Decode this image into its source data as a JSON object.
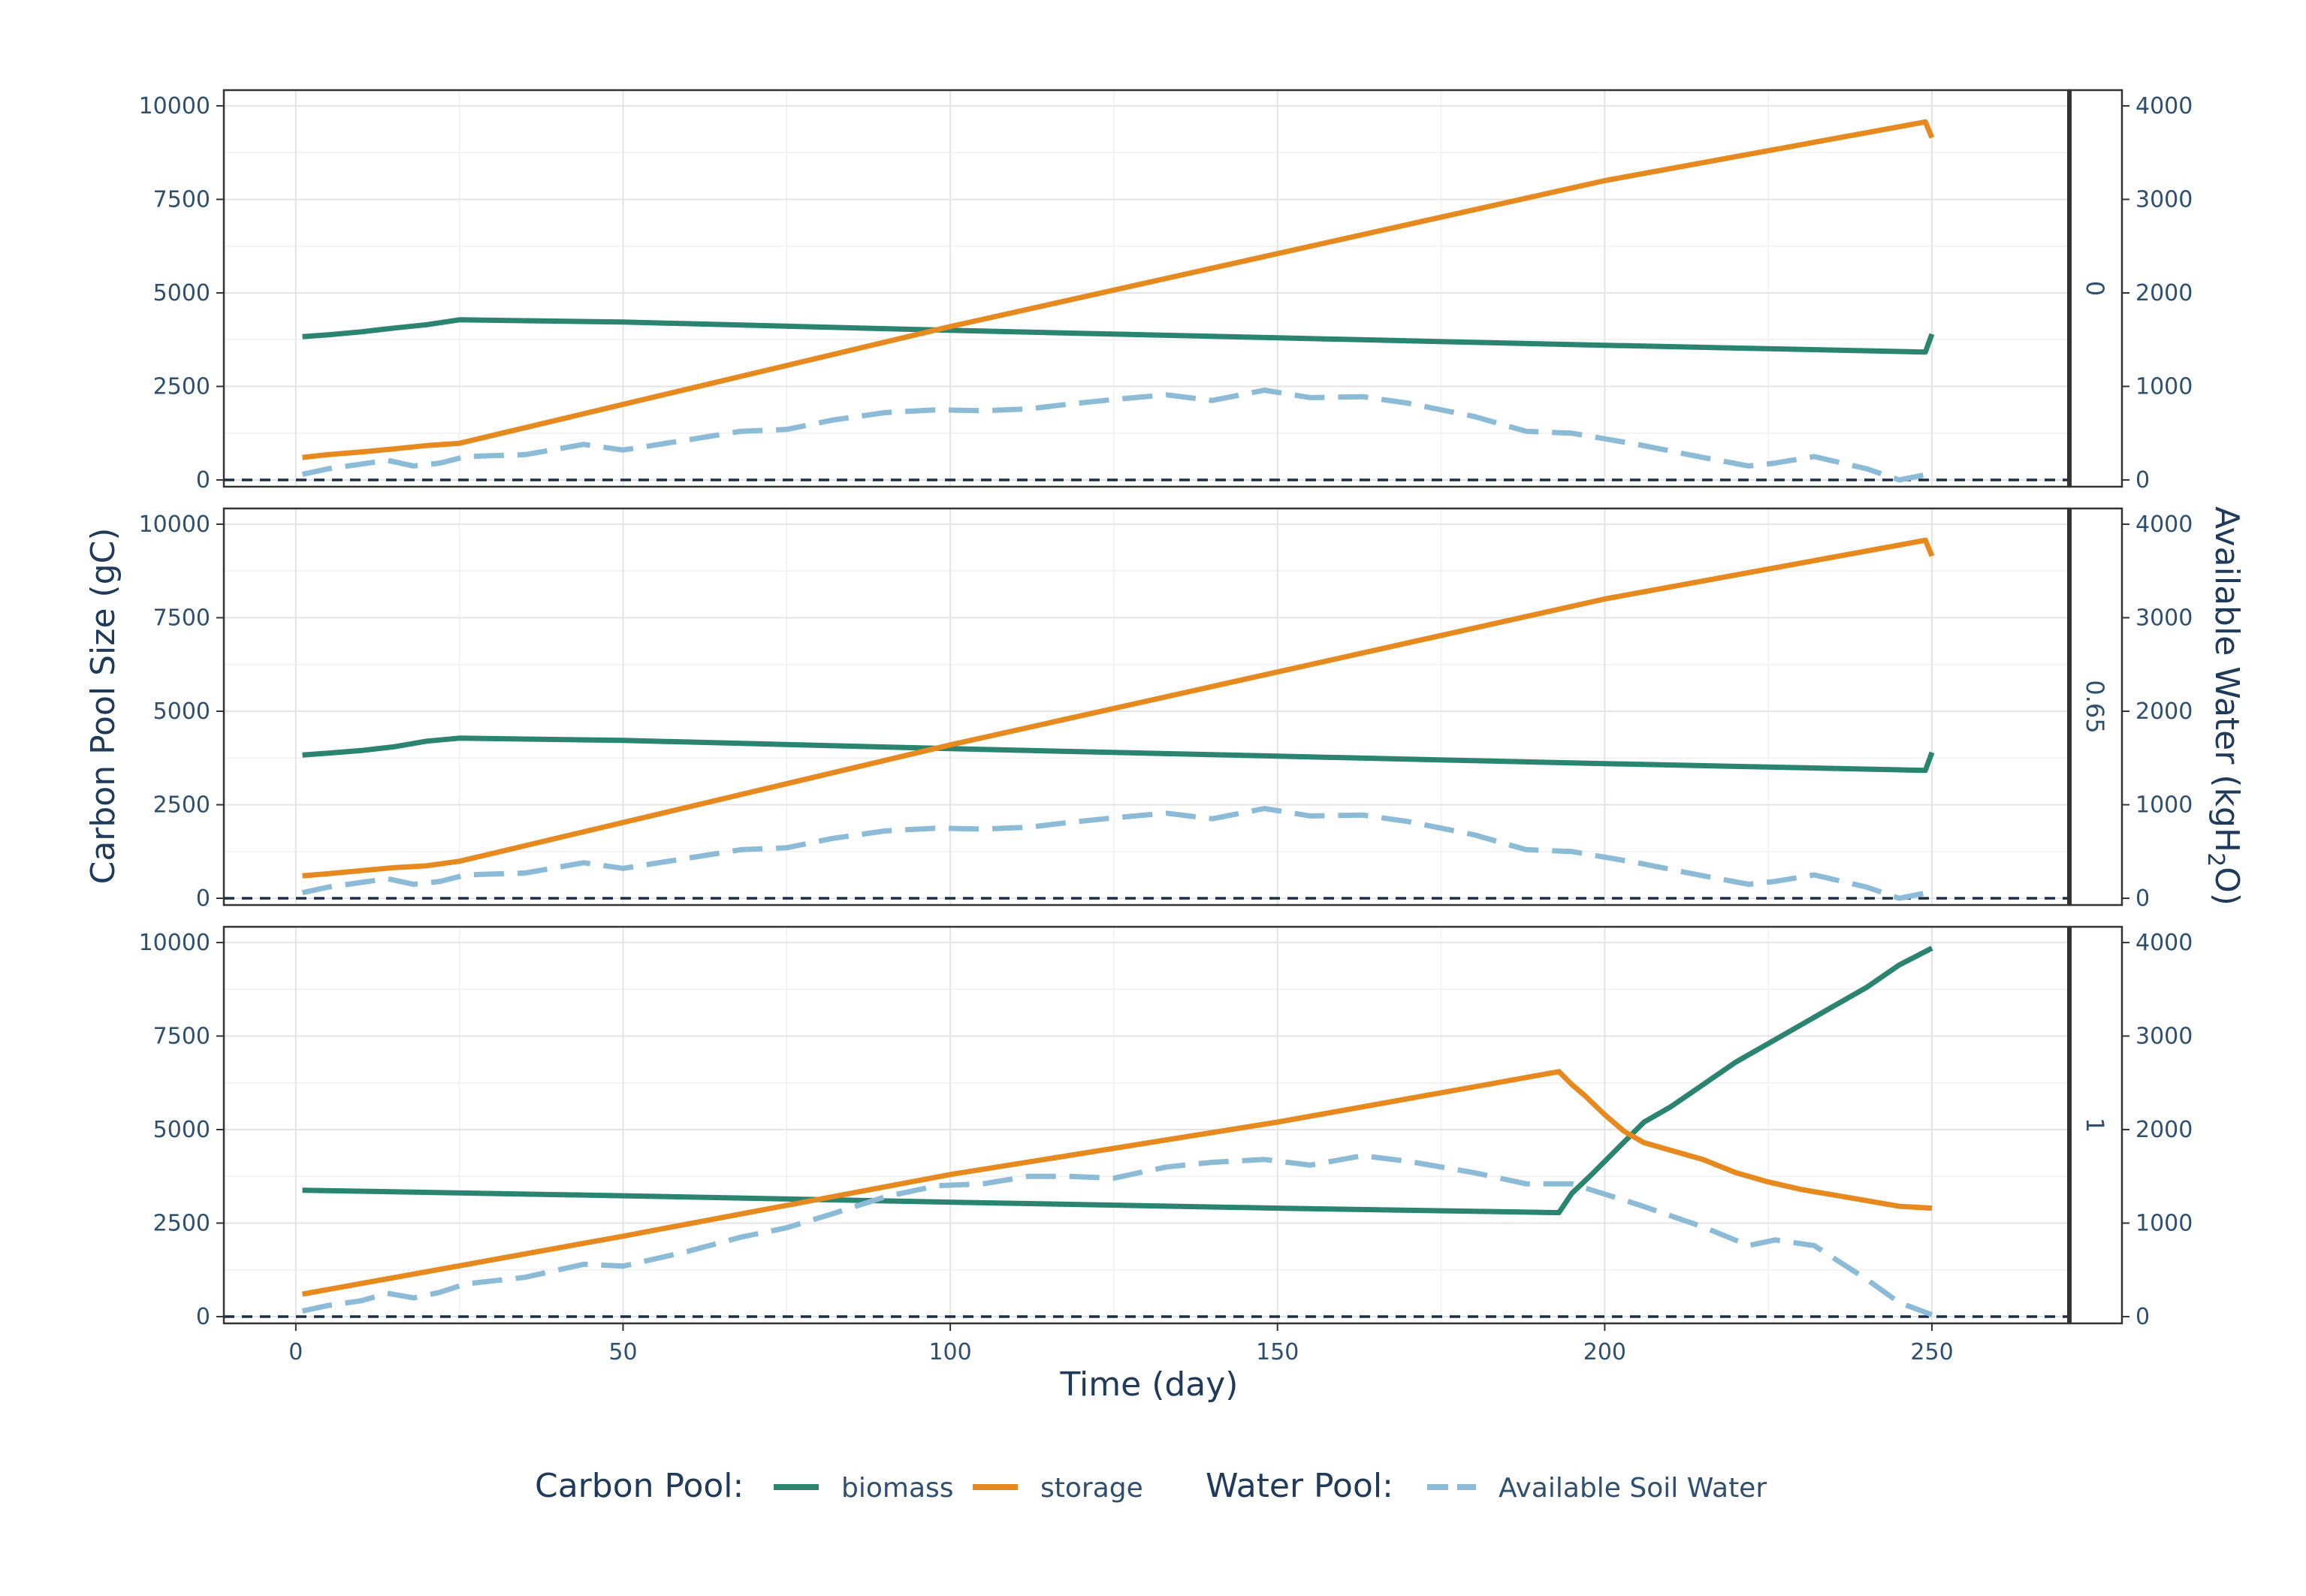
{
  "chart_data": {
    "type": "line",
    "xlabel": "Time (day)",
    "ylabel": "Carbon Pool Size (gC)",
    "y2label": "Available Water (kgH2O)",
    "y2label_parts": {
      "main": "Available Water (kgH",
      "sub": "2",
      "tail": "O)"
    },
    "xlim": [
      -11,
      271
    ],
    "ylim": [
      -180,
      10420
    ],
    "y2lim": [
      -72,
      4168
    ],
    "xticks": [
      0,
      50,
      100,
      150,
      200,
      250
    ],
    "yticks": [
      0,
      2500,
      5000,
      7500,
      10000
    ],
    "y2ticks": [
      0,
      1000,
      2000,
      3000,
      4000
    ],
    "reference_line": {
      "y": 0,
      "style": "dashed"
    },
    "grid": true,
    "legend": {
      "position": "bottom",
      "carbon_title": "Carbon Pool:",
      "water_title": "Water Pool:",
      "items": [
        {
          "label": "biomass",
          "color": "#2a8470",
          "dash": "solid"
        },
        {
          "label": "storage",
          "color": "#e68a1f",
          "dash": "solid"
        },
        {
          "label": "Available Soil Water",
          "color": "#8bbbd6",
          "dash": "dashed"
        }
      ]
    },
    "panels": [
      {
        "label": "0",
        "series": [
          {
            "name": "biomass",
            "axis": "left",
            "color": "#2a8470",
            "x": [
              1,
              5,
              10,
              15,
              20,
              25,
              50,
              100,
              150,
              200,
              249,
              250
            ],
            "y": [
              3830,
              3880,
              3960,
              4060,
              4150,
              4280,
              4220,
              4000,
              3800,
              3600,
              3420,
              3900
            ]
          },
          {
            "name": "storage",
            "axis": "left",
            "color": "#e68a1f",
            "x": [
              1,
              5,
              10,
              15,
              20,
              25,
              100,
              200,
              249,
              250
            ],
            "y": [
              600,
              680,
              750,
              830,
              920,
              980,
              4100,
              8000,
              9570,
              9150
            ]
          },
          {
            "name": "Available Soil Water",
            "axis": "right",
            "color": "#8bbbd6",
            "x": [
              1,
              5,
              10,
              14,
              18,
              22,
              26,
              35,
              44,
              50,
              60,
              68,
              75,
              82,
              90,
              98,
              105,
              112,
              118,
              125,
              133,
              140,
              148,
              155,
              163,
              170,
              180,
              188,
              195,
              205,
              215,
              222,
              226,
              232,
              240,
              245,
              250
            ],
            "y": [
              60,
              120,
              170,
              210,
              150,
              180,
              250,
              270,
              380,
              320,
              430,
              520,
              540,
              640,
              720,
              750,
              740,
              760,
              810,
              860,
              910,
              850,
              960,
              880,
              890,
              820,
              680,
              520,
              500,
              380,
              240,
              150,
              180,
              250,
              120,
              0,
              70
            ]
          }
        ]
      },
      {
        "label": "0.65",
        "series": [
          {
            "name": "biomass",
            "axis": "left",
            "color": "#2a8470",
            "x": [
              1,
              5,
              10,
              15,
              20,
              25,
              50,
              100,
              150,
              200,
              249,
              250
            ],
            "y": [
              3830,
              3880,
              3950,
              4050,
              4200,
              4280,
              4220,
              4000,
              3800,
              3600,
              3420,
              3900
            ]
          },
          {
            "name": "storage",
            "axis": "left",
            "color": "#e68a1f",
            "x": [
              1,
              5,
              10,
              15,
              20,
              25,
              100,
              200,
              249,
              250
            ],
            "y": [
              600,
              660,
              740,
              820,
              870,
              990,
              4100,
              8000,
              9570,
              9150
            ]
          },
          {
            "name": "Available Soil Water",
            "axis": "right",
            "color": "#8bbbd6",
            "x": [
              1,
              5,
              10,
              14,
              18,
              22,
              26,
              35,
              44,
              50,
              60,
              68,
              75,
              82,
              90,
              98,
              105,
              112,
              118,
              125,
              133,
              140,
              148,
              155,
              163,
              170,
              180,
              188,
              195,
              205,
              215,
              222,
              226,
              232,
              240,
              245,
              250
            ],
            "y": [
              60,
              120,
              170,
              210,
              150,
              180,
              250,
              270,
              380,
              320,
              430,
              520,
              540,
              640,
              720,
              750,
              740,
              760,
              810,
              860,
              910,
              850,
              960,
              880,
              890,
              820,
              680,
              520,
              500,
              380,
              240,
              150,
              180,
              250,
              120,
              0,
              70
            ]
          }
        ]
      },
      {
        "label": "1",
        "series": [
          {
            "name": "biomass",
            "axis": "left",
            "color": "#2a8470",
            "x": [
              1,
              50,
              100,
              150,
              193,
              195,
              198,
              202,
              206,
              210,
              215,
              220,
              225,
              230,
              235,
              240,
              245,
              250
            ],
            "y": [
              3380,
              3230,
              3060,
              2900,
              2780,
              3300,
              3800,
              4500,
              5200,
              5600,
              6200,
              6800,
              7300,
              7800,
              8300,
              8800,
              9400,
              9850
            ]
          },
          {
            "name": "storage",
            "axis": "left",
            "color": "#e68a1f",
            "x": [
              1,
              50,
              100,
              150,
              193,
              195,
              197,
              200,
              203,
              206,
              210,
              215,
              220,
              225,
              230,
              235,
              240,
              245,
              250
            ],
            "y": [
              600,
              2150,
              3800,
              5200,
              6550,
              6200,
              5900,
              5400,
              4950,
              4650,
              4450,
              4200,
              3850,
              3600,
              3400,
              3250,
              3100,
              2950,
              2900
            ]
          },
          {
            "name": "Available Soil Water",
            "axis": "right",
            "color": "#8bbbd6",
            "x": [
              1,
              5,
              10,
              14,
              18,
              22,
              26,
              35,
              44,
              50,
              60,
              68,
              75,
              82,
              90,
              98,
              105,
              112,
              118,
              125,
              133,
              140,
              148,
              155,
              163,
              170,
              180,
              188,
              195,
              205,
              215,
              222,
              226,
              232,
              240,
              245,
              250
            ],
            "y": [
              60,
              120,
              170,
              250,
              200,
              260,
              350,
              420,
              560,
              540,
              700,
              850,
              950,
              1100,
              1280,
              1400,
              1420,
              1500,
              1500,
              1480,
              1600,
              1650,
              1680,
              1620,
              1720,
              1660,
              1540,
              1420,
              1420,
              1200,
              960,
              760,
              820,
              760,
              400,
              150,
              20
            ]
          }
        ]
      }
    ]
  }
}
